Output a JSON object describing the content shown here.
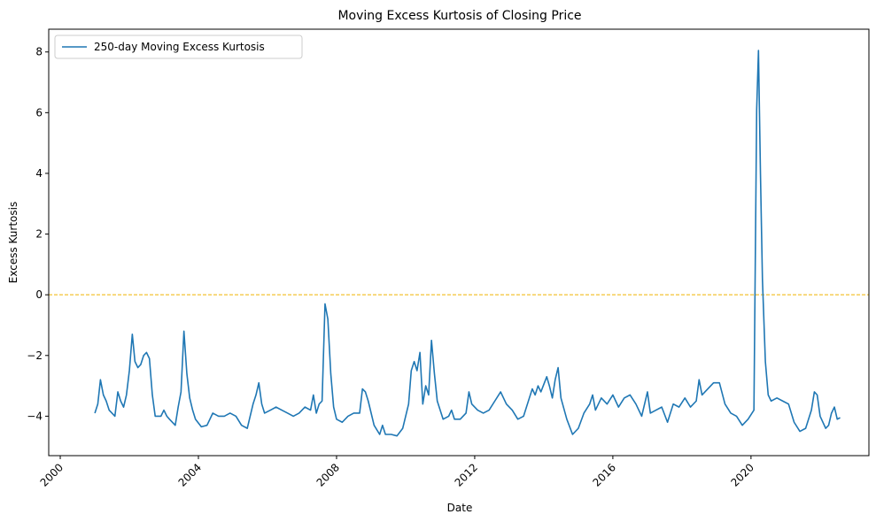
{
  "chart_data": {
    "type": "line",
    "title": "Moving Excess Kurtosis of Closing Price",
    "xlabel": "Date",
    "ylabel": "Excess Kurtosis",
    "xlim": [
      "1999-09-01",
      "2023-06-01"
    ],
    "ylim": [
      -5.3,
      8.75
    ],
    "x_ticks": [
      "2000-01-01",
      "2004-01-01",
      "2008-01-01",
      "2012-01-01",
      "2016-01-01",
      "2020-01-01"
    ],
    "x_tick_labels": [
      "2000",
      "2004",
      "2008",
      "2012",
      "2016",
      "2020"
    ],
    "y_ticks": [
      -4,
      -2,
      0,
      2,
      4,
      6,
      8
    ],
    "y_tick_labels": [
      "−4",
      "−2",
      "0",
      "2",
      "4",
      "6",
      "8"
    ],
    "x_tick_rotation": 45,
    "grid": false,
    "legend": {
      "position": "upper-left"
    },
    "reference_line": {
      "y": 0,
      "color": "#f0b400",
      "style": "dashed"
    },
    "series": [
      {
        "name": "250-day Moving Excess Kurtosis",
        "color": "#1f77b4",
        "points": [
          [
            "2001-01-01",
            -3.9
          ],
          [
            "2001-02-01",
            -3.6
          ],
          [
            "2001-03-01",
            -2.8
          ],
          [
            "2001-04-01",
            -3.3
          ],
          [
            "2001-05-01",
            -3.5
          ],
          [
            "2001-06-01",
            -3.8
          ],
          [
            "2001-07-01",
            -3.9
          ],
          [
            "2001-08-01",
            -4.0
          ],
          [
            "2001-09-01",
            -3.2
          ],
          [
            "2001-10-01",
            -3.5
          ],
          [
            "2001-11-01",
            -3.7
          ],
          [
            "2001-12-01",
            -3.3
          ],
          [
            "2002-01-01",
            -2.5
          ],
          [
            "2002-02-01",
            -1.3
          ],
          [
            "2002-03-01",
            -2.2
          ],
          [
            "2002-04-01",
            -2.4
          ],
          [
            "2002-05-01",
            -2.3
          ],
          [
            "2002-06-01",
            -2.0
          ],
          [
            "2002-07-01",
            -1.9
          ],
          [
            "2002-08-01",
            -2.1
          ],
          [
            "2002-09-01",
            -3.3
          ],
          [
            "2002-10-01",
            -4.0
          ],
          [
            "2002-11-01",
            -4.0
          ],
          [
            "2002-12-01",
            -4.0
          ],
          [
            "2003-01-01",
            -3.8
          ],
          [
            "2003-02-01",
            -4.0
          ],
          [
            "2003-03-01",
            -4.1
          ],
          [
            "2003-04-01",
            -4.2
          ],
          [
            "2003-05-01",
            -4.3
          ],
          [
            "2003-06-01",
            -3.7
          ],
          [
            "2003-07-01",
            -3.2
          ],
          [
            "2003-08-01",
            -1.2
          ],
          [
            "2003-09-01",
            -2.6
          ],
          [
            "2003-10-01",
            -3.4
          ],
          [
            "2003-11-01",
            -3.8
          ],
          [
            "2003-12-01",
            -4.1
          ],
          [
            "2004-02-01",
            -4.35
          ],
          [
            "2004-04-01",
            -4.3
          ],
          [
            "2004-06-01",
            -3.9
          ],
          [
            "2004-08-01",
            -4.0
          ],
          [
            "2004-10-01",
            -4.0
          ],
          [
            "2004-12-01",
            -3.9
          ],
          [
            "2005-02-01",
            -4.0
          ],
          [
            "2005-04-01",
            -4.3
          ],
          [
            "2005-06-01",
            -4.4
          ],
          [
            "2005-08-01",
            -3.6
          ],
          [
            "2005-09-01",
            -3.3
          ],
          [
            "2005-10-01",
            -2.9
          ],
          [
            "2005-11-01",
            -3.6
          ],
          [
            "2005-12-01",
            -3.9
          ],
          [
            "2006-02-01",
            -3.8
          ],
          [
            "2006-04-01",
            -3.7
          ],
          [
            "2006-06-01",
            -3.8
          ],
          [
            "2006-08-01",
            -3.9
          ],
          [
            "2006-10-01",
            -4.0
          ],
          [
            "2006-12-01",
            -3.9
          ],
          [
            "2007-02-01",
            -3.7
          ],
          [
            "2007-04-01",
            -3.8
          ],
          [
            "2007-05-01",
            -3.3
          ],
          [
            "2007-06-01",
            -3.9
          ],
          [
            "2007-07-01",
            -3.6
          ],
          [
            "2007-08-01",
            -3.5
          ],
          [
            "2007-09-01",
            -0.3
          ],
          [
            "2007-10-01",
            -0.8
          ],
          [
            "2007-11-01",
            -2.6
          ],
          [
            "2007-12-01",
            -3.7
          ],
          [
            "2008-01-01",
            -4.1
          ],
          [
            "2008-03-01",
            -4.2
          ],
          [
            "2008-05-01",
            -4.0
          ],
          [
            "2008-07-01",
            -3.9
          ],
          [
            "2008-09-01",
            -3.9
          ],
          [
            "2008-10-01",
            -3.1
          ],
          [
            "2008-11-01",
            -3.2
          ],
          [
            "2008-12-01",
            -3.5
          ],
          [
            "2009-02-01",
            -4.3
          ],
          [
            "2009-04-01",
            -4.6
          ],
          [
            "2009-05-01",
            -4.3
          ],
          [
            "2009-06-01",
            -4.6
          ],
          [
            "2009-08-01",
            -4.6
          ],
          [
            "2009-10-01",
            -4.65
          ],
          [
            "2009-12-01",
            -4.4
          ],
          [
            "2010-02-01",
            -3.6
          ],
          [
            "2010-03-01",
            -2.5
          ],
          [
            "2010-04-01",
            -2.2
          ],
          [
            "2010-05-01",
            -2.5
          ],
          [
            "2010-06-01",
            -1.9
          ],
          [
            "2010-07-01",
            -3.6
          ],
          [
            "2010-08-01",
            -3.0
          ],
          [
            "2010-09-01",
            -3.3
          ],
          [
            "2010-10-01",
            -1.5
          ],
          [
            "2010-11-01",
            -2.6
          ],
          [
            "2010-12-01",
            -3.5
          ],
          [
            "2011-02-01",
            -4.1
          ],
          [
            "2011-04-01",
            -4.0
          ],
          [
            "2011-05-01",
            -3.8
          ],
          [
            "2011-06-01",
            -4.1
          ],
          [
            "2011-08-01",
            -4.1
          ],
          [
            "2011-10-01",
            -3.9
          ],
          [
            "2011-11-01",
            -3.2
          ],
          [
            "2011-12-01",
            -3.6
          ],
          [
            "2012-02-01",
            -3.8
          ],
          [
            "2012-04-01",
            -3.9
          ],
          [
            "2012-06-01",
            -3.8
          ],
          [
            "2012-08-01",
            -3.5
          ],
          [
            "2012-10-01",
            -3.2
          ],
          [
            "2012-12-01",
            -3.6
          ],
          [
            "2013-02-01",
            -3.8
          ],
          [
            "2013-04-01",
            -4.1
          ],
          [
            "2013-06-01",
            -4.0
          ],
          [
            "2013-08-01",
            -3.4
          ],
          [
            "2013-09-01",
            -3.1
          ],
          [
            "2013-10-01",
            -3.3
          ],
          [
            "2013-11-01",
            -3.0
          ],
          [
            "2013-12-01",
            -3.2
          ],
          [
            "2014-02-01",
            -2.7
          ],
          [
            "2014-03-01",
            -3.0
          ],
          [
            "2014-04-01",
            -3.4
          ],
          [
            "2014-05-01",
            -2.8
          ],
          [
            "2014-06-01",
            -2.4
          ],
          [
            "2014-07-01",
            -3.4
          ],
          [
            "2014-09-01",
            -4.1
          ],
          [
            "2014-11-01",
            -4.6
          ],
          [
            "2015-01-01",
            -4.4
          ],
          [
            "2015-03-01",
            -3.9
          ],
          [
            "2015-05-01",
            -3.6
          ],
          [
            "2015-06-01",
            -3.3
          ],
          [
            "2015-07-01",
            -3.8
          ],
          [
            "2015-09-01",
            -3.4
          ],
          [
            "2015-11-01",
            -3.6
          ],
          [
            "2016-01-01",
            -3.3
          ],
          [
            "2016-03-01",
            -3.7
          ],
          [
            "2016-05-01",
            -3.4
          ],
          [
            "2016-07-01",
            -3.3
          ],
          [
            "2016-09-01",
            -3.6
          ],
          [
            "2016-11-01",
            -4.0
          ],
          [
            "2017-01-01",
            -3.2
          ],
          [
            "2017-02-01",
            -3.9
          ],
          [
            "2017-04-01",
            -3.8
          ],
          [
            "2017-06-01",
            -3.7
          ],
          [
            "2017-08-01",
            -4.2
          ],
          [
            "2017-10-01",
            -3.6
          ],
          [
            "2017-12-01",
            -3.7
          ],
          [
            "2018-02-01",
            -3.4
          ],
          [
            "2018-04-01",
            -3.7
          ],
          [
            "2018-06-01",
            -3.5
          ],
          [
            "2018-07-01",
            -2.8
          ],
          [
            "2018-08-01",
            -3.3
          ],
          [
            "2018-10-01",
            -3.1
          ],
          [
            "2018-12-01",
            -2.9
          ],
          [
            "2019-02-01",
            -2.9
          ],
          [
            "2019-04-01",
            -3.6
          ],
          [
            "2019-06-01",
            -3.9
          ],
          [
            "2019-08-01",
            -4.0
          ],
          [
            "2019-10-01",
            -4.3
          ],
          [
            "2019-12-01",
            -4.1
          ],
          [
            "2020-02-01",
            -3.8
          ],
          [
            "2020-03-01",
            6.1
          ],
          [
            "2020-03-20",
            8.05
          ],
          [
            "2020-04-10",
            4.0
          ],
          [
            "2020-05-01",
            0.5
          ],
          [
            "2020-06-01",
            -2.2
          ],
          [
            "2020-07-01",
            -3.3
          ],
          [
            "2020-08-01",
            -3.5
          ],
          [
            "2020-10-01",
            -3.4
          ],
          [
            "2020-12-01",
            -3.5
          ],
          [
            "2021-02-01",
            -3.6
          ],
          [
            "2021-04-01",
            -4.2
          ],
          [
            "2021-06-01",
            -4.5
          ],
          [
            "2021-08-01",
            -4.4
          ],
          [
            "2021-10-01",
            -3.8
          ],
          [
            "2021-11-01",
            -3.2
          ],
          [
            "2021-12-01",
            -3.3
          ],
          [
            "2022-01-01",
            -4.0
          ],
          [
            "2022-03-01",
            -4.4
          ],
          [
            "2022-04-01",
            -4.3
          ],
          [
            "2022-05-01",
            -3.9
          ],
          [
            "2022-06-01",
            -3.7
          ],
          [
            "2022-07-01",
            -4.1
          ],
          [
            "2022-08-01",
            -4.05
          ]
        ]
      }
    ]
  }
}
